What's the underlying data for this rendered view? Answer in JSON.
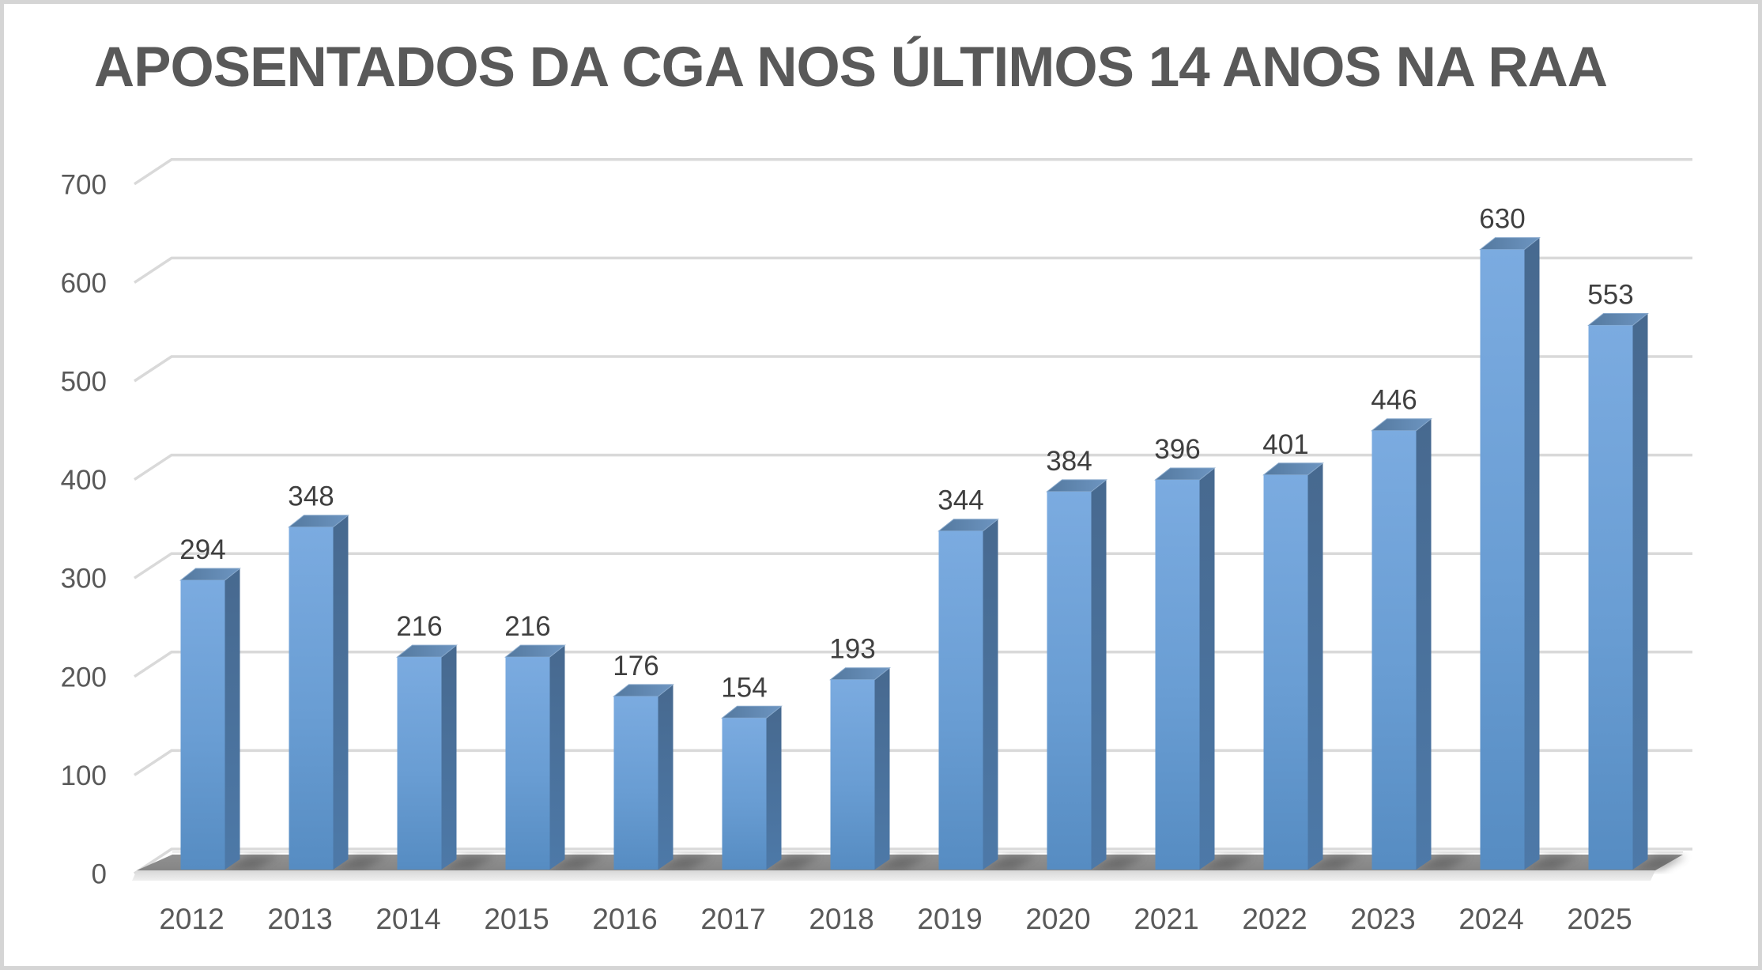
{
  "chart_data": {
    "type": "bar",
    "style": "3d-column",
    "title": "APOSENTADOS DA CGA NOS ÚLTIMOS 14 ANOS NA RAA",
    "categories": [
      "2012",
      "2013",
      "2014",
      "2015",
      "2016",
      "2017",
      "2018",
      "2019",
      "2020",
      "2021",
      "2022",
      "2023",
      "2024",
      "2025"
    ],
    "values": [
      294,
      348,
      216,
      216,
      176,
      154,
      193,
      344,
      384,
      396,
      401,
      446,
      630,
      553
    ],
    "data_labels": [
      "294",
      "348",
      "216",
      "216",
      "176",
      "154",
      "193",
      "344",
      "384",
      "396",
      "401",
      "446",
      "630",
      "553"
    ],
    "xlabel": "",
    "ylabel": "",
    "y_axis": {
      "min": 0,
      "max": 700,
      "step": 100,
      "ticks": [
        "0",
        "100",
        "200",
        "300",
        "400",
        "500",
        "600",
        "700"
      ]
    },
    "grid": "horizontal-major",
    "legend": "none",
    "colors": {
      "title_text": "#595959",
      "axis_text": "#595959",
      "value_label_text": "#3f3f3f",
      "gridline": "#d9d9d9",
      "bar_front_top": "#7babe0",
      "bar_front_mid": "#699dd3",
      "bar_front_bottom": "#568cc2",
      "bar_top_left": "#54799f",
      "bar_top_right": "#6d95c1",
      "bar_side_top": "#47698f",
      "bar_side_bottom": "#4d79a8",
      "floor_back": "#919191",
      "floor_front": "#858585",
      "floor_shadow": "#4a4a4a",
      "floor_bevel_top": "#d7d7d7",
      "floor_bevel_bottom": "#f0f0f0",
      "floor_backline": "#ededed",
      "canvas_border": "#d5d5d5",
      "background": "#ffffff"
    }
  }
}
